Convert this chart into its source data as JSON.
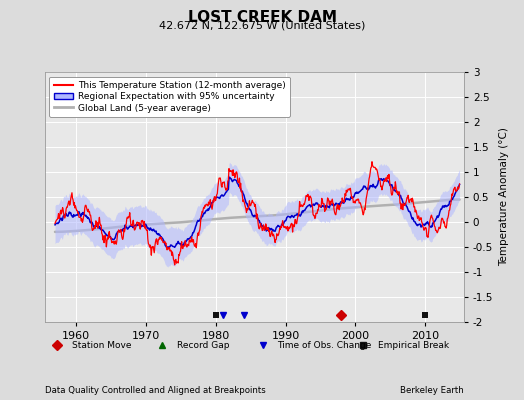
{
  "title": "LOST CREEK DAM",
  "subtitle": "42.672 N, 122.675 W (United States)",
  "ylabel": "Temperature Anomaly (°C)",
  "xlabel_note": "Data Quality Controlled and Aligned at Breakpoints",
  "attribution": "Berkeley Earth",
  "ylim": [
    -2.0,
    3.0
  ],
  "xlim": [
    1955.5,
    2015.5
  ],
  "yticks": [
    -2,
    -1.5,
    -1,
    -0.5,
    0,
    0.5,
    1,
    1.5,
    2,
    2.5,
    3
  ],
  "xticks": [
    1960,
    1970,
    1980,
    1990,
    2000,
    2010
  ],
  "bg_color": "#dcdcdc",
  "plot_bg_color": "#e8e8e8",
  "grid_color": "#ffffff",
  "station_color": "#ff0000",
  "regional_line_color": "#0000cc",
  "regional_fill_color": "#b0b8ff",
  "global_color": "#b0b0b0",
  "marker_station_move_color": "#cc0000",
  "marker_record_gap_color": "#006600",
  "marker_time_obs_color": "#0000cc",
  "marker_empirical_color": "#111111",
  "legend_entries": [
    "This Temperature Station (12-month average)",
    "Regional Expectation with 95% uncertainty",
    "Global Land (5-year average)"
  ],
  "event_years_station_move": [
    1998
  ],
  "event_years_record_gap": [],
  "event_years_time_obs": [
    1981,
    1984
  ],
  "event_years_empirical": [
    1980,
    2010
  ],
  "seed": 42
}
